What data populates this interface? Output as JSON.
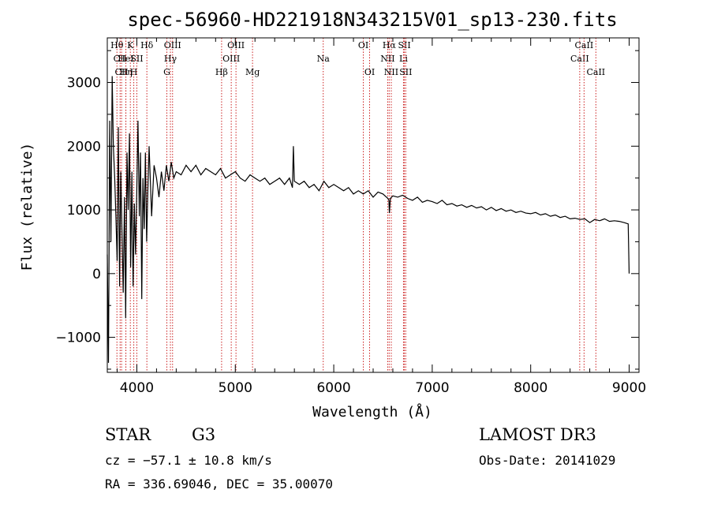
{
  "chart_data": {
    "type": "line",
    "title": "spec-56960-HD221918N343215V01_sp13-230.fits",
    "xlabel": "Wavelength (Å)",
    "ylabel": "Flux (relative)",
    "xlim": [
      3700,
      9100
    ],
    "ylim": [
      -1550,
      3700
    ],
    "xticks": [
      4000,
      5000,
      6000,
      7000,
      8000,
      9000
    ],
    "yticks": [
      -1000,
      0,
      1000,
      2000,
      3000
    ],
    "series": [
      {
        "name": "flux",
        "x": [
          3700,
          3712,
          3725,
          3737,
          3750,
          3762,
          3775,
          3787,
          3800,
          3812,
          3825,
          3837,
          3850,
          3862,
          3875,
          3887,
          3900,
          3912,
          3925,
          3937,
          3950,
          3962,
          3975,
          3987,
          4000,
          4012,
          4025,
          4037,
          4050,
          4062,
          4075,
          4087,
          4100,
          4112,
          4125,
          4150,
          4175,
          4200,
          4225,
          4250,
          4275,
          4300,
          4325,
          4350,
          4375,
          4400,
          4450,
          4500,
          4550,
          4600,
          4650,
          4700,
          4750,
          4800,
          4850,
          4900,
          4950,
          5000,
          5050,
          5100,
          5150,
          5200,
          5250,
          5300,
          5350,
          5400,
          5450,
          5500,
          5550,
          5580,
          5590,
          5600,
          5650,
          5700,
          5750,
          5800,
          5850,
          5900,
          5950,
          6000,
          6050,
          6100,
          6150,
          6200,
          6250,
          6300,
          6350,
          6400,
          6450,
          6500,
          6550,
          6560,
          6565,
          6575,
          6600,
          6650,
          6700,
          6750,
          6800,
          6850,
          6900,
          6950,
          7000,
          7050,
          7100,
          7150,
          7200,
          7250,
          7300,
          7350,
          7400,
          7450,
          7500,
          7550,
          7600,
          7650,
          7700,
          7750,
          7800,
          7850,
          7900,
          7950,
          8000,
          8050,
          8100,
          8150,
          8200,
          8250,
          8300,
          8350,
          8400,
          8450,
          8500,
          8550,
          8600,
          8650,
          8700,
          8750,
          8800,
          8850,
          8900,
          8950,
          8990,
          9000
        ],
        "y": [
          300,
          -1400,
          2400,
          500,
          3100,
          2000,
          1500,
          900,
          200,
          2300,
          -200,
          1600,
          600,
          -300,
          1200,
          -700,
          1900,
          1000,
          2200,
          100,
          1600,
          -200,
          1100,
          300,
          1300,
          2400,
          900,
          1900,
          -400,
          1500,
          700,
          1900,
          500,
          1300,
          2000,
          900,
          1700,
          1500,
          1200,
          1600,
          1300,
          1700,
          1450,
          1750,
          1500,
          1600,
          1550,
          1700,
          1600,
          1700,
          1550,
          1650,
          1600,
          1550,
          1650,
          1500,
          1550,
          1600,
          1500,
          1450,
          1550,
          1500,
          1450,
          1500,
          1400,
          1450,
          1500,
          1400,
          1500,
          1350,
          2000,
          1450,
          1400,
          1450,
          1350,
          1400,
          1300,
          1450,
          1350,
          1400,
          1350,
          1300,
          1350,
          1250,
          1300,
          1250,
          1300,
          1200,
          1280,
          1250,
          1180,
          1150,
          950,
          1180,
          1220,
          1200,
          1230,
          1180,
          1150,
          1200,
          1120,
          1150,
          1130,
          1100,
          1150,
          1080,
          1100,
          1060,
          1080,
          1040,
          1070,
          1030,
          1050,
          1000,
          1040,
          990,
          1020,
          980,
          1000,
          960,
          980,
          950,
          940,
          960,
          920,
          940,
          900,
          920,
          880,
          900,
          860,
          870,
          850,
          860,
          800,
          850,
          830,
          860,
          820,
          830,
          820,
          800,
          780,
          0
        ]
      }
    ],
    "lines": [
      {
        "name": "Hθ",
        "wl": 3798,
        "row": 1
      },
      {
        "name": "CII",
        "wl": 3830,
        "row": 2
      },
      {
        "name": "CII",
        "wl": 3845,
        "row": 3
      },
      {
        "name": "Hη",
        "wl": 3889,
        "row": 3
      },
      {
        "name": "K",
        "wl": 3934,
        "row": 1
      },
      {
        "name": "HeI",
        "wl": 3888,
        "row": 2
      },
      {
        "name": "H",
        "wl": 3969,
        "row": 3
      },
      {
        "name": "SII",
        "wl": 4000,
        "row": 2
      },
      {
        "name": "Hδ",
        "wl": 4102,
        "row": 1
      },
      {
        "name": "OIII",
        "wl": 4363,
        "row": 1
      },
      {
        "name": "Hγ",
        "wl": 4341,
        "row": 2
      },
      {
        "name": "G",
        "wl": 4305,
        "row": 3
      },
      {
        "name": "Hβ",
        "wl": 4861,
        "row": 3
      },
      {
        "name": "OIII",
        "wl": 4959,
        "row": 2
      },
      {
        "name": "OIII",
        "wl": 5007,
        "row": 1
      },
      {
        "name": "Mg",
        "wl": 5175,
        "row": 3
      },
      {
        "name": "Na",
        "wl": 5893,
        "row": 2
      },
      {
        "name": "OI",
        "wl": 6300,
        "row": 1
      },
      {
        "name": "OI",
        "wl": 6364,
        "row": 3
      },
      {
        "name": "Hα",
        "wl": 6563,
        "row": 1
      },
      {
        "name": "NII",
        "wl": 6548,
        "row": 2
      },
      {
        "name": "NII",
        "wl": 6584,
        "row": 3
      },
      {
        "name": "Li",
        "wl": 6708,
        "row": 2
      },
      {
        "name": "SII",
        "wl": 6717,
        "row": 1
      },
      {
        "name": "SII",
        "wl": 6731,
        "row": 3
      },
      {
        "name": "CaII",
        "wl": 8498,
        "row": 2
      },
      {
        "name": "CaII",
        "wl": 8542,
        "row": 1
      },
      {
        "name": "CaII",
        "wl": 8662,
        "row": 3
      }
    ]
  },
  "info": {
    "object_class": "STAR",
    "subclass": "G3",
    "survey": "LAMOST DR3",
    "cz": "cz = −57.1 ± 10.8 km/s",
    "obs_date": "Obs-Date: 20141029",
    "coords": "RA = 336.69046, DEC =  35.00070"
  }
}
